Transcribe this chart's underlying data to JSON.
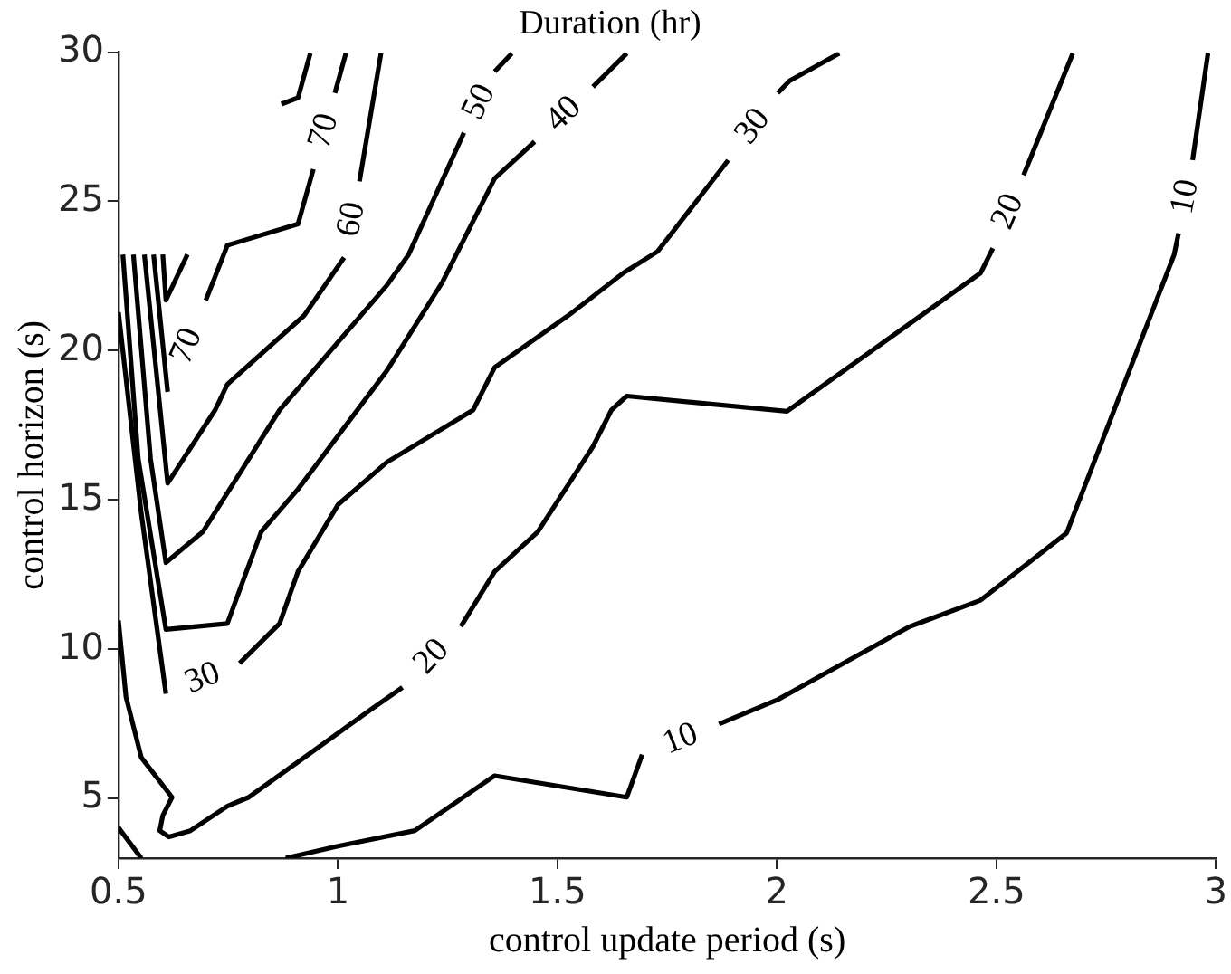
{
  "chart_data": {
    "type": "line",
    "title": "Duration (hr)",
    "xlabel": "control update period (s)",
    "ylabel": "control horizon (s)",
    "xlim": [
      0.5,
      3
    ],
    "xticks": [
      0.5,
      1,
      1.5,
      2,
      2.5,
      3
    ],
    "ylim": [
      3,
      30
    ],
    "yticks": [
      5,
      10,
      15,
      20,
      25,
      30
    ],
    "grid": false,
    "legend": false,
    "series": [
      {
        "color": "#000000",
        "x": [
          0.5,
          0.552
        ],
        "values": [
          4.02,
          3.0
        ]
      },
      {
        "name": "10",
        "color": "#000000",
        "x": [
          0.881,
          1.0,
          1.175,
          1.357,
          1.658,
          1.693,
          1.785,
          1.868,
          2.002,
          2.303,
          2.464,
          2.66,
          2.905,
          2.915,
          2.92,
          2.947,
          2.982
        ],
        "values": [
          3.0,
          3.4,
          3.92,
          5.76,
          5.04,
          6.47,
          null,
          7.49,
          8.31,
          10.76,
          11.64,
          13.89,
          23.22,
          23.93,
          null,
          26.38,
          29.96
        ]
      },
      {
        "name": "20",
        "color": "#000000",
        "x": [
          0.5,
          0.517,
          0.552,
          0.622,
          0.601,
          0.594,
          0.615,
          0.664,
          0.748,
          0.797,
          0.923,
          1.077,
          1.147,
          1.217,
          1.28,
          1.357,
          1.455,
          1.581,
          1.623,
          1.658,
          2.023,
          2.464,
          2.492,
          2.541,
          2.562,
          2.674
        ],
        "values": [
          10.96,
          8.41,
          6.37,
          5.04,
          4.43,
          3.92,
          3.71,
          3.92,
          4.74,
          5.04,
          6.37,
          8.0,
          8.72,
          null,
          10.76,
          12.6,
          13.93,
          16.79,
          18.01,
          18.48,
          17.97,
          22.6,
          23.43,
          null,
          25.88,
          29.96
        ]
      },
      {
        "name": "30",
        "color": "#000000",
        "x": [
          0.5,
          0.552,
          0.608,
          0.699,
          0.776,
          0.867,
          0.909,
          1.0,
          1.112,
          1.308,
          1.357,
          1.525,
          1.651,
          1.728,
          1.889,
          1.939,
          2.002,
          2.029,
          2.142
        ],
        "values": [
          21.28,
          14.54,
          8.51,
          null,
          9.53,
          10.86,
          12.6,
          14.84,
          16.27,
          18.01,
          19.44,
          21.18,
          22.61,
          23.32,
          26.38,
          null,
          28.63,
          29.04,
          29.96
        ]
      },
      {
        "name": "40",
        "color": "#000000",
        "x": [
          0.51,
          0.545,
          0.608,
          0.748,
          0.825,
          0.909,
          1.112,
          1.238,
          1.357,
          1.448,
          1.504,
          1.581,
          1.658
        ],
        "values": [
          23.22,
          16.38,
          10.66,
          10.86,
          13.93,
          15.36,
          19.34,
          22.3,
          25.77,
          27.0,
          null,
          28.84,
          29.96
        ]
      },
      {
        "name": "50",
        "color": "#000000",
        "x": [
          0.534,
          0.573,
          0.608,
          0.692,
          0.867,
          1.112,
          1.161,
          1.287,
          1.322,
          1.357,
          1.396
        ],
        "values": [
          23.22,
          16.38,
          12.9,
          13.93,
          18.01,
          22.2,
          23.22,
          27.3,
          null,
          29.35,
          29.96
        ]
      },
      {
        "name": "60",
        "color": "#000000",
        "x": [
          0.559,
          0.612,
          0.72,
          0.748,
          0.923,
          1.014,
          1.032,
          1.049,
          1.098
        ],
        "values": [
          23.22,
          15.56,
          18.01,
          18.87,
          21.18,
          23.12,
          null,
          25.67,
          29.96
        ]
      },
      {
        "name": "70",
        "color": "#000000",
        "x": [
          0.58,
          0.612,
          0.664,
          0.699,
          0.748,
          0.909,
          0.944,
          0.97,
          0.993,
          1.018
        ],
        "values": [
          23.22,
          18.62,
          null,
          21.69,
          23.53,
          24.24,
          26.08,
          null,
          28.63,
          29.96
        ]
      },
      {
        "color": "#000000",
        "x": [
          0.871,
          0.909,
          0.937
        ],
        "values": [
          28.26,
          28.47,
          29.96
        ]
      },
      {
        "color": "#000000",
        "x": [
          0.601,
          0.608,
          0.657
        ],
        "values": [
          23.22,
          21.69,
          23.22
        ]
      }
    ]
  }
}
